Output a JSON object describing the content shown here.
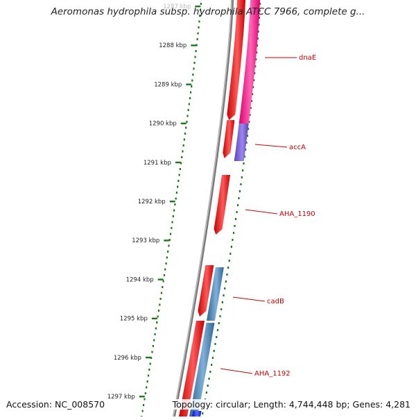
{
  "title": "Aeromonas hydrophila subsp. hydrophila ATCC 7966, complete g...",
  "footer": {
    "accession": "Accession: NC_008570",
    "summary": "Topology: circular; Length: 4,744,448 bp; Genes: 4,281"
  },
  "ticks": [
    {
      "label": "1287 kbp",
      "faded": true
    },
    {
      "label": "1288 kbp"
    },
    {
      "label": "1289 kbp"
    },
    {
      "label": "1290 kbp"
    },
    {
      "label": "1291 kbp"
    },
    {
      "label": "1292 kbp"
    },
    {
      "label": "1293 kbp"
    },
    {
      "label": "1294 kbp"
    },
    {
      "label": "1295 kbp"
    },
    {
      "label": "1296 kbp"
    },
    {
      "label": "1297 kbp"
    }
  ],
  "gene_labels": [
    "dnaE",
    "accA",
    "AHA_1190",
    "cadB",
    "AHA_1192"
  ],
  "colors": {
    "backbone": "#7a7a7a",
    "tick": "#1a7a1a",
    "label_line": "#cc0000",
    "label_text": "#cc0000",
    "forward_gene": "#ee1111",
    "magenta_track": "#ff3399",
    "purple_track": "#7a5fcf",
    "steelblue_track": "#4682b4",
    "blue_track": "#1a2bff"
  }
}
